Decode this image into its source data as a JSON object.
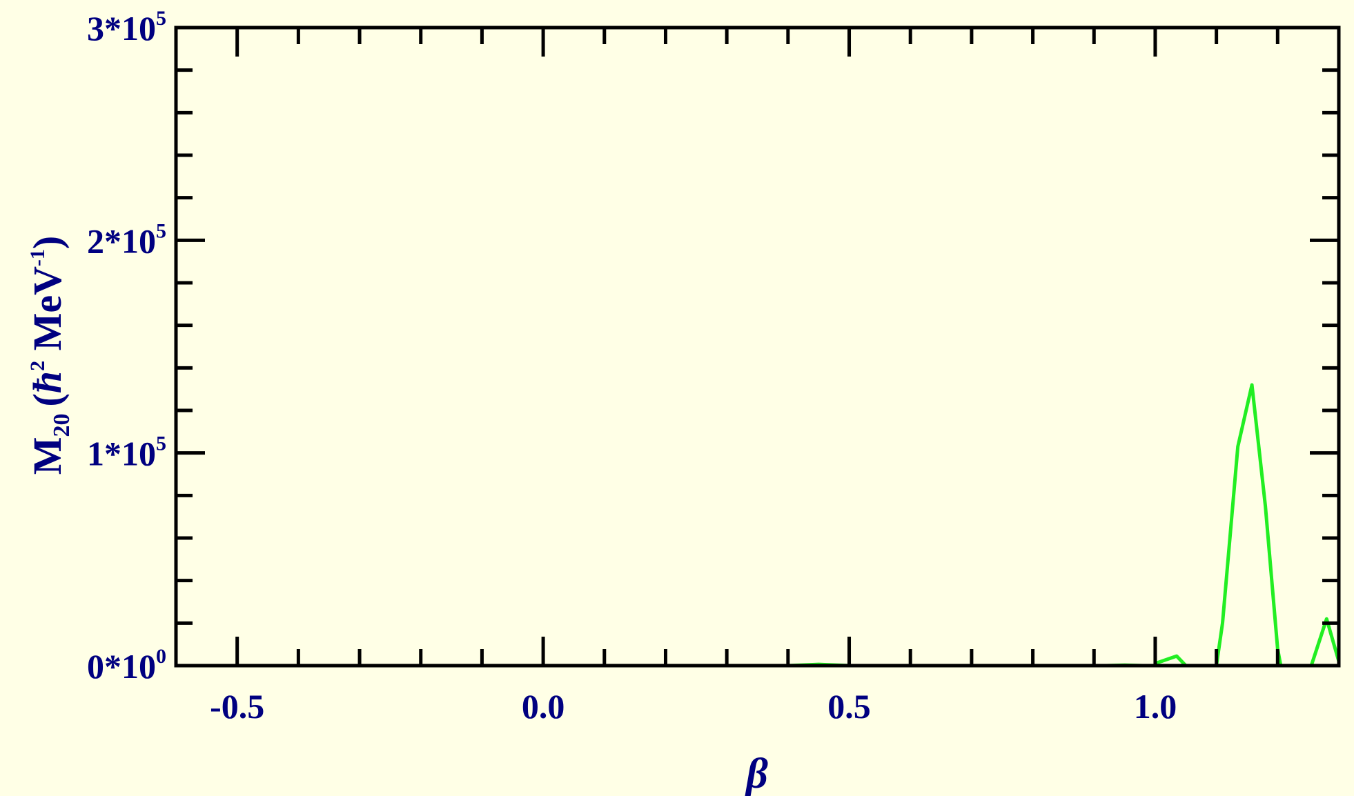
{
  "chart_data": {
    "type": "line",
    "xlabel": "β",
    "ylabel": {
      "main": "M",
      "sub": "20",
      "open": "(",
      "hbar": "ħ",
      "hbar_sup": "2",
      "unit": " MeV",
      "unit_sup": "-1",
      "close": ")"
    },
    "xlim": [
      -0.6,
      1.3
    ],
    "ylim": [
      0,
      300000
    ],
    "x_ticks": [
      {
        "value": -0.5,
        "label": "-0.5"
      },
      {
        "value": 0.0,
        "label": "0.0"
      },
      {
        "value": 0.5,
        "label": "0.5"
      },
      {
        "value": 1.0,
        "label": "1.0"
      }
    ],
    "y_ticks": [
      {
        "value": 0,
        "base": "0*10",
        "exp": "0"
      },
      {
        "value": 100000,
        "base": "1*10",
        "exp": "5"
      },
      {
        "value": 200000,
        "base": "2*10",
        "exp": "5"
      },
      {
        "value": 300000,
        "base": "3*10",
        "exp": "5"
      }
    ],
    "x_minor_step": 0.1,
    "y_minor_step": 20000,
    "grid": false,
    "colors": {
      "background": "#ffffe6",
      "axis_text": "#000080",
      "frame": "#000000",
      "series": "#22ee22"
    },
    "series": [
      {
        "segments": [
          [
            [
              0.4,
              0
            ],
            [
              0.45,
              600
            ],
            [
              0.5,
              0
            ]
          ],
          [
            [
              0.92,
              0
            ],
            [
              0.95,
              250
            ],
            [
              0.98,
              0
            ]
          ],
          [
            [
              1.0,
              1000
            ],
            [
              1.035,
              4500
            ],
            [
              1.05,
              0
            ]
          ],
          [
            [
              1.1,
              0
            ],
            [
              1.11,
              20000
            ],
            [
              1.135,
              103000
            ],
            [
              1.158,
              132000
            ],
            [
              1.18,
              75000
            ],
            [
              1.2,
              8000
            ],
            [
              1.205,
              0
            ]
          ],
          [
            [
              1.255,
              0
            ],
            [
              1.28,
              22000
            ],
            [
              1.3,
              2000
            ]
          ]
        ]
      }
    ]
  }
}
